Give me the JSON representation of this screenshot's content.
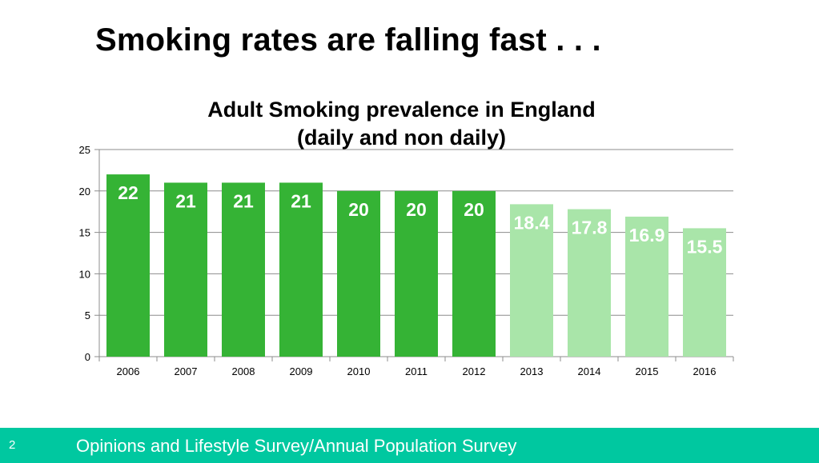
{
  "slide": {
    "title": "Smoking rates are falling fast . . .",
    "page_number": "2",
    "footer_text": "Opinions and Lifestyle Survey/Annual Population Survey"
  },
  "colors": {
    "bar_dark": "#35b335",
    "bar_light": "#a9e5a9",
    "footer": "#00c8a0",
    "gridline": "#8c8c8c"
  },
  "chart_data": {
    "type": "bar",
    "title_lines": [
      "Adult Smoking prevalence in England",
      "(daily and non daily)"
    ],
    "categories": [
      "2006",
      "2007",
      "2008",
      "2009",
      "2010",
      "2011",
      "2012",
      "2013",
      "2014",
      "2015",
      "2016"
    ],
    "values": [
      22,
      21,
      21,
      21,
      20,
      20,
      20,
      18.4,
      17.8,
      16.9,
      15.5
    ],
    "data_labels": [
      "22",
      "21",
      "21",
      "21",
      "20",
      "20",
      "20",
      "18.4",
      "17.8",
      "16.9",
      "15.5"
    ],
    "shade": [
      "dark",
      "dark",
      "dark",
      "dark",
      "dark",
      "dark",
      "dark",
      "light",
      "light",
      "light",
      "light"
    ],
    "ylim": [
      0,
      25
    ],
    "yticks": [
      0,
      5,
      10,
      15,
      20,
      25
    ],
    "grid": true,
    "xlabel": "",
    "ylabel": ""
  }
}
